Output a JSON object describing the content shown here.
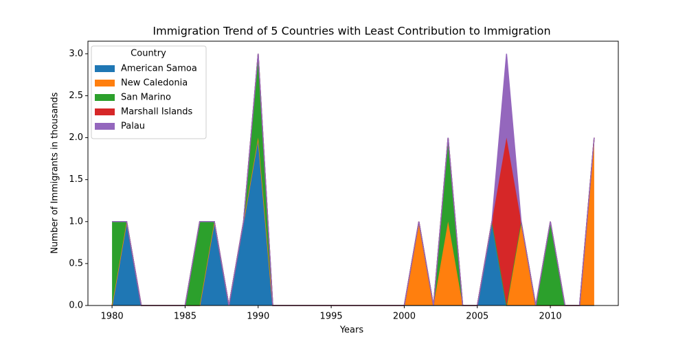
{
  "chart_data": {
    "type": "area",
    "stacked": true,
    "title": "Immigration Trend of 5 Countries with Least Contribution to Immigration",
    "x_label": "Years",
    "y_label": "Number of Immigrants in thousands",
    "x": [
      1980,
      1981,
      1982,
      1983,
      1984,
      1985,
      1986,
      1987,
      1988,
      1989,
      1990,
      1991,
      1992,
      1993,
      1994,
      1995,
      1996,
      1997,
      1998,
      1999,
      2000,
      2001,
      2002,
      2003,
      2004,
      2005,
      2006,
      2007,
      2008,
      2009,
      2010,
      2011,
      2012,
      2013
    ],
    "series": [
      {
        "name": "American Samoa",
        "color": "#1f77b4",
        "values": [
          0,
          1,
          0,
          0,
          0,
          0,
          0,
          1,
          0,
          1,
          2,
          0,
          0,
          0,
          0,
          0,
          0,
          0,
          0,
          0,
          0,
          0,
          0,
          0,
          0,
          0,
          1,
          0,
          0,
          0,
          0,
          0,
          0,
          0
        ]
      },
      {
        "name": "New Caledonia",
        "color": "#ff7f0e",
        "values": [
          0,
          0,
          0,
          0,
          0,
          0,
          0,
          0,
          0,
          0,
          0,
          0,
          0,
          0,
          0,
          0,
          0,
          0,
          0,
          0,
          0,
          1,
          0,
          1,
          0,
          0,
          0,
          0,
          1,
          0,
          0,
          0,
          0,
          2
        ]
      },
      {
        "name": "San Marino",
        "color": "#2ca02c",
        "values": [
          1,
          0,
          0,
          0,
          0,
          0,
          1,
          0,
          0,
          0,
          1,
          0,
          0,
          0,
          0,
          0,
          0,
          0,
          0,
          0,
          0,
          0,
          0,
          1,
          0,
          0,
          0,
          0,
          0,
          0,
          1,
          0,
          0,
          0
        ]
      },
      {
        "name": "Marshall Islands",
        "color": "#d62728",
        "values": [
          0,
          0,
          0,
          0,
          0,
          0,
          0,
          0,
          0,
          0,
          0,
          0,
          0,
          0,
          0,
          0,
          0,
          0,
          0,
          0,
          0,
          0,
          0,
          0,
          0,
          0,
          0,
          2,
          0,
          0,
          0,
          0,
          0,
          0
        ]
      },
      {
        "name": "Palau",
        "color": "#9467bd",
        "values": [
          0,
          0,
          0,
          0,
          0,
          0,
          0,
          0,
          0,
          0,
          0,
          0,
          0,
          0,
          0,
          0,
          0,
          0,
          0,
          0,
          0,
          0,
          0,
          0,
          0,
          0,
          0,
          1,
          0,
          0,
          0,
          0,
          0,
          0
        ]
      }
    ],
    "xlim": [
      1978.35,
      2014.65
    ],
    "xticks": [
      1980,
      1985,
      1990,
      1995,
      2000,
      2005,
      2010
    ],
    "ylim": [
      0,
      3.15
    ],
    "yticks": [
      {
        "value": 0,
        "label": "0.0"
      },
      {
        "value": 0.5,
        "label": "0.5"
      },
      {
        "value": 1,
        "label": "1.0"
      },
      {
        "value": 1.5,
        "label": "1.5"
      },
      {
        "value": 2,
        "label": "2.0"
      },
      {
        "value": 2.5,
        "label": "2.5"
      },
      {
        "value": 3,
        "label": "3.0"
      }
    ],
    "legend": {
      "title": "Country",
      "loc": "upper left"
    }
  }
}
